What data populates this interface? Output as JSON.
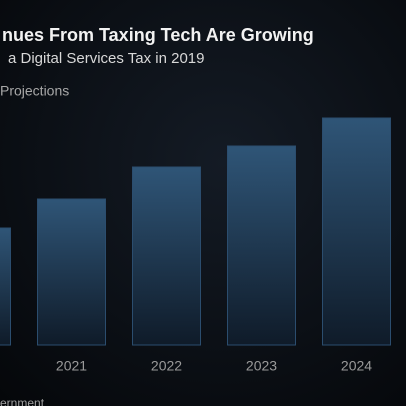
{
  "chart_data": {
    "type": "bar",
    "title": "nues From Taxing Tech Are Growing",
    "subtitle": "a Digital Services Tax in 2019",
    "annotation": "Projections",
    "source": "ernment",
    "categories": [
      null,
      "2021",
      "2022",
      "2023",
      "2024"
    ],
    "values": [
      117,
      146,
      178,
      199,
      227
    ],
    "color": "#2b4d6e",
    "ylim": [
      0,
      250
    ]
  }
}
